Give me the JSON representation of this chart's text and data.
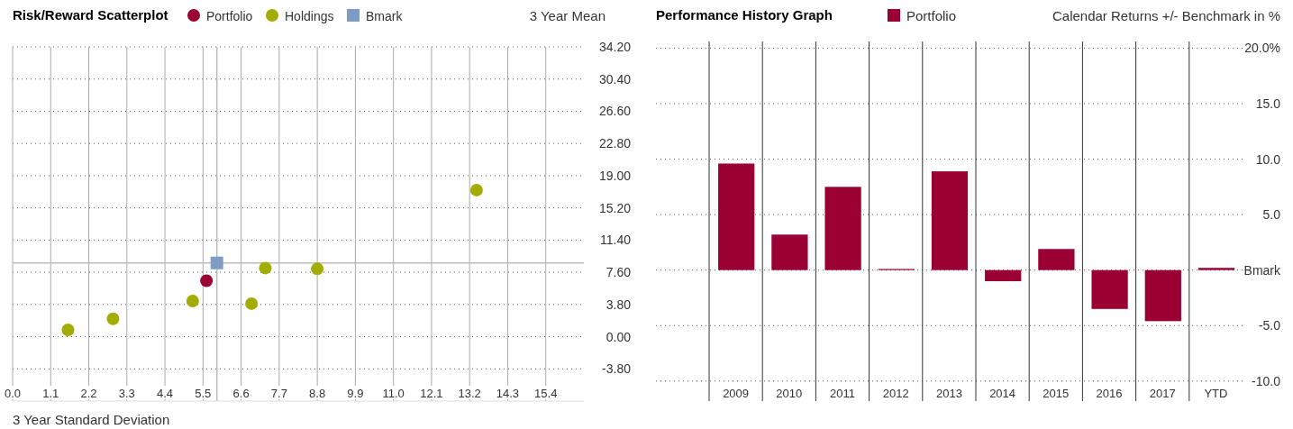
{
  "chart_data": [
    {
      "type": "scatter",
      "title": "Risk/Reward Scatterplot",
      "xlabel": "3 Year Standard Deviation",
      "ylabel": "3 Year Mean",
      "legend": "top",
      "grid": true,
      "xlim": [
        0,
        16.5
      ],
      "ylim": [
        -7.6,
        34.2
      ],
      "xticks": [
        {
          "value": 0,
          "label": "0.0"
        },
        1.1,
        2.2,
        3.3,
        4.4,
        5.5,
        6.6,
        7.7,
        8.8,
        9.9,
        {
          "value": 11,
          "label": "11.0"
        },
        12.1,
        13.2,
        14.3,
        15.4
      ],
      "yticks": [
        {
          "value": -3.8,
          "label": "-3.80"
        },
        {
          "value": 0,
          "label": "0.00"
        },
        {
          "value": 3.8,
          "label": "3.80"
        },
        {
          "value": 7.6,
          "label": "7.60"
        },
        {
          "value": 11.4,
          "label": "11.40"
        },
        {
          "value": 15.2,
          "label": "15.20"
        },
        {
          "value": 19,
          "label": "19.00"
        },
        {
          "value": 22.8,
          "label": "22.80"
        },
        {
          "value": 26.6,
          "label": "26.60"
        },
        {
          "value": 30.4,
          "label": "30.40"
        },
        {
          "value": 34.2,
          "label": "34.20"
        }
      ],
      "ref_lines": [
        {
          "axis": "x",
          "value": 5.9,
          "color": "#bbbbbb"
        },
        {
          "axis": "y",
          "value": 8.7,
          "color": "#bbbbbb"
        }
      ],
      "series": [
        {
          "name": "Portfolio",
          "color": "#9b0032",
          "marker": "circle",
          "x": [
            5.6
          ],
          "values": [
            6.6
          ]
        },
        {
          "name": "Holdings",
          "color": "#a3ac00",
          "marker": "circle",
          "x": [
            1.6,
            2.9,
            5.2,
            6.9,
            7.3,
            8.8,
            13.4
          ],
          "values": [
            0.8,
            2.1,
            4.2,
            3.9,
            8.1,
            8.0,
            17.3
          ]
        },
        {
          "name": "Bmark",
          "color": "#7f9cc4",
          "marker": "square",
          "x": [
            5.9
          ],
          "values": [
            8.7
          ]
        }
      ]
    },
    {
      "type": "bar",
      "title": "Performance History Graph",
      "ylabel": "Calendar Returns +/- Benchmark in %",
      "legend": "top",
      "grid": "y",
      "categories": [
        "2009",
        "2010",
        "2011",
        "2012",
        "2013",
        "2014",
        "2015",
        "2016",
        "2017",
        "YTD"
      ],
      "ylim": [
        -11.8,
        20.6
      ],
      "yticks": [
        {
          "value": -10,
          "label": "-10.0"
        },
        {
          "value": -5,
          "label": "-5.0"
        },
        {
          "value": 0,
          "label": "Bmark"
        },
        {
          "value": 5,
          "label": "5.0"
        },
        {
          "value": 10,
          "label": "10.0"
        },
        {
          "value": 15,
          "label": "15.0"
        },
        {
          "value": 20,
          "label": "20.0%"
        }
      ],
      "series": [
        {
          "name": "Portfolio",
          "color": "#9b0032",
          "values": [
            9.6,
            3.2,
            7.5,
            0.1,
            8.9,
            -1.0,
            1.9,
            -3.5,
            -4.6,
            0.2
          ]
        }
      ]
    }
  ]
}
